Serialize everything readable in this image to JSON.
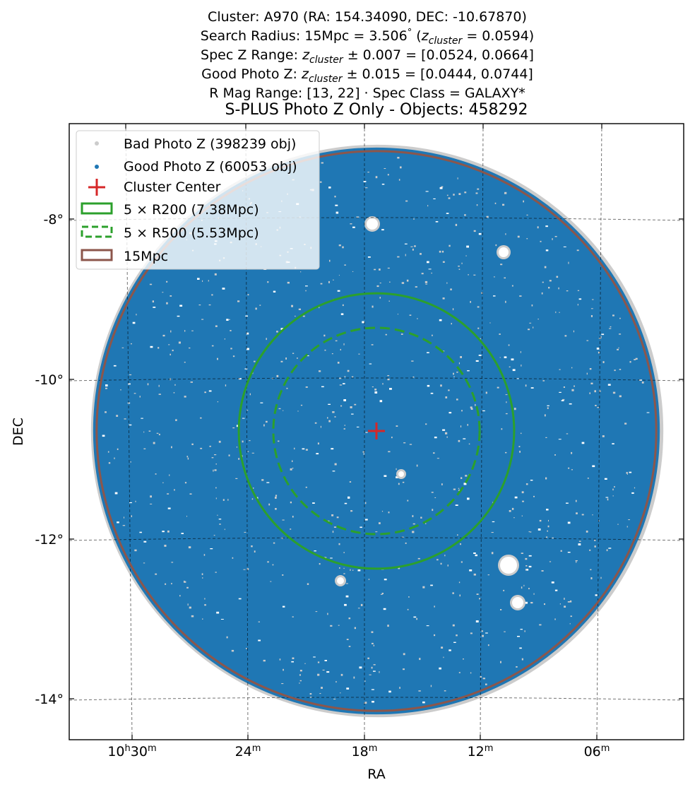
{
  "header": {
    "line1": "Cluster: A970 (RA: 154.34090, DEC: -10.67870)",
    "line2_pre": "Search Radius: 15Mpc = 3.506",
    "line2_deg": "°",
    "line2_z": "z",
    "line2_zsub": "cluster",
    "line2_post": " = 0.0594)",
    "line3_pre": "Spec Z Range: ",
    "line3_z": "z",
    "line3_zsub": "cluster",
    "line3_post": " ± 0.007 = [0.0524, 0.0664]",
    "line4_pre": "Good Photo Z: ",
    "line4_z": "z",
    "line4_zsub": "cluster",
    "line4_post": " ± 0.015 = [0.0444, 0.0744]",
    "line5": "R Mag Range: [13, 22] · Spec Class = GALAXY*",
    "subtitle": "S-PLUS Photo Z Only - Objects: 458292"
  },
  "colors": {
    "good": "#1f77b4",
    "bad": "#cccccc",
    "center": "#d62728",
    "r200": "#2ca02c",
    "r500": "#2ca02c",
    "r15": "#8c564b",
    "grid": "#000000"
  },
  "chart_data": {
    "type": "scatter",
    "title": "S-PLUS Photo Z Only - Objects: 458292",
    "xlabel": "RA",
    "ylabel": "DEC",
    "projection": "sky (RA increases to the left)",
    "xlim_deg": [
      157.91,
      150.66
    ],
    "ylim_deg": [
      -14.5,
      -6.3
    ],
    "x_ticks": [
      {
        "ra_deg": 157.5,
        "hour": "10",
        "hour_sup": "h",
        "min": "30",
        "min_sup": "m"
      },
      {
        "ra_deg": 156.0,
        "hour": "",
        "hour_sup": "",
        "min": "24",
        "min_sup": "m"
      },
      {
        "ra_deg": 154.5,
        "hour": "",
        "hour_sup": "",
        "min": "18",
        "min_sup": "m"
      },
      {
        "ra_deg": 153.0,
        "hour": "",
        "hour_sup": "",
        "min": "12",
        "min_sup": "m"
      },
      {
        "ra_deg": 151.5,
        "hour": "",
        "hour_sup": "",
        "min": "06",
        "min_sup": "m"
      }
    ],
    "y_ticks": [
      {
        "dec_deg": -8,
        "label": "-8°"
      },
      {
        "dec_deg": -10,
        "label": "-10°"
      },
      {
        "dec_deg": -12,
        "label": "-12°"
      },
      {
        "dec_deg": -14,
        "label": "-14°"
      }
    ],
    "grid": true,
    "legend_position": "upper-left",
    "cluster_center": {
      "ra": 154.3409,
      "dec": -10.6787
    },
    "series": [
      {
        "name": "Bad Photo Z (398239 obj)",
        "count": 398239,
        "kind": "points"
      },
      {
        "name": "Good Photo Z (60053 obj)",
        "count": 60053,
        "kind": "points"
      },
      {
        "name": "Cluster Center",
        "kind": "marker"
      },
      {
        "name": "5 × R200 (7.38Mpc)",
        "kind": "circle",
        "radius_mpc": 7.38
      },
      {
        "name": "5 × R500 (5.53Mpc)",
        "kind": "circle",
        "radius_mpc": 5.53
      },
      {
        "name": "15Mpc",
        "kind": "circle",
        "radius_mpc": 15
      }
    ],
    "search_radius_deg": 3.506
  }
}
